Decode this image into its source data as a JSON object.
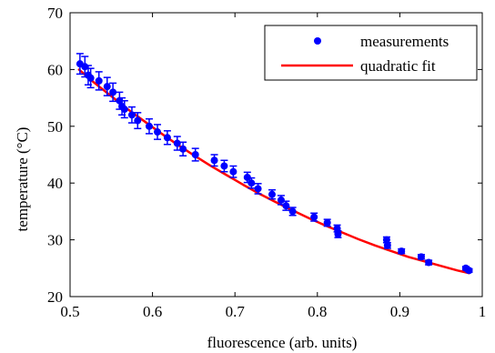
{
  "chart_data": {
    "type": "scatter",
    "xlabel": "fluorescence (arb. units)",
    "ylabel": "temperature (°C)",
    "xlim": [
      0.5,
      1.0
    ],
    "ylim": [
      20,
      70
    ],
    "xticks": [
      {
        "value": 0.5,
        "label": "0.5"
      },
      {
        "value": 0.6,
        "label": "0.6"
      },
      {
        "value": 0.7,
        "label": "0.7"
      },
      {
        "value": 0.8,
        "label": "0.8"
      },
      {
        "value": 0.9,
        "label": "0.9"
      },
      {
        "value": 1.0,
        "label": "1"
      }
    ],
    "yticks": [
      {
        "value": 20,
        "label": "20"
      },
      {
        "value": 30,
        "label": "30"
      },
      {
        "value": 40,
        "label": "40"
      },
      {
        "value": 50,
        "label": "50"
      },
      {
        "value": 60,
        "label": "60"
      },
      {
        "value": 70,
        "label": "70"
      }
    ],
    "grid": false,
    "legend_position": "top-right",
    "series": [
      {
        "name": "measurements",
        "kind": "markers-with-errorbars",
        "color": "#0000ff",
        "points": [
          {
            "x": 0.512,
            "y": 61.0,
            "err": 1.8
          },
          {
            "x": 0.518,
            "y": 60.5,
            "err": 1.8
          },
          {
            "x": 0.522,
            "y": 59.0,
            "err": 1.7
          },
          {
            "x": 0.525,
            "y": 58.5,
            "err": 1.7
          },
          {
            "x": 0.535,
            "y": 58.0,
            "err": 1.6
          },
          {
            "x": 0.545,
            "y": 57.0,
            "err": 1.6
          },
          {
            "x": 0.552,
            "y": 56.0,
            "err": 1.6
          },
          {
            "x": 0.56,
            "y": 54.5,
            "err": 1.5
          },
          {
            "x": 0.563,
            "y": 53.5,
            "err": 1.5
          },
          {
            "x": 0.566,
            "y": 53.0,
            "err": 1.5
          },
          {
            "x": 0.575,
            "y": 52.0,
            "err": 1.4
          },
          {
            "x": 0.582,
            "y": 51.0,
            "err": 1.4
          },
          {
            "x": 0.596,
            "y": 50.0,
            "err": 1.3
          },
          {
            "x": 0.606,
            "y": 49.0,
            "err": 1.3
          },
          {
            "x": 0.618,
            "y": 48.0,
            "err": 1.2
          },
          {
            "x": 0.63,
            "y": 47.0,
            "err": 1.2
          },
          {
            "x": 0.637,
            "y": 46.0,
            "err": 1.2
          },
          {
            "x": 0.652,
            "y": 45.0,
            "err": 1.1
          },
          {
            "x": 0.675,
            "y": 44.0,
            "err": 1.0
          },
          {
            "x": 0.687,
            "y": 43.0,
            "err": 1.0
          },
          {
            "x": 0.698,
            "y": 42.0,
            "err": 1.0
          },
          {
            "x": 0.715,
            "y": 41.0,
            "err": 0.9
          },
          {
            "x": 0.72,
            "y": 40.0,
            "err": 0.9
          },
          {
            "x": 0.728,
            "y": 39.0,
            "err": 0.9
          },
          {
            "x": 0.745,
            "y": 38.0,
            "err": 0.8
          },
          {
            "x": 0.756,
            "y": 37.0,
            "err": 0.8
          },
          {
            "x": 0.762,
            "y": 36.0,
            "err": 0.8
          },
          {
            "x": 0.77,
            "y": 35.0,
            "err": 0.7
          },
          {
            "x": 0.796,
            "y": 34.0,
            "err": 0.7
          },
          {
            "x": 0.812,
            "y": 33.0,
            "err": 0.6
          },
          {
            "x": 0.824,
            "y": 32.0,
            "err": 0.6
          },
          {
            "x": 0.825,
            "y": 31.0,
            "err": 0.6
          },
          {
            "x": 0.884,
            "y": 30.0,
            "err": 0.5
          },
          {
            "x": 0.885,
            "y": 29.0,
            "err": 0.5
          },
          {
            "x": 0.902,
            "y": 28.0,
            "err": 0.4
          },
          {
            "x": 0.926,
            "y": 27.0,
            "err": 0.4
          },
          {
            "x": 0.935,
            "y": 26.0,
            "err": 0.4
          },
          {
            "x": 0.98,
            "y": 25.0,
            "err": 0.3
          },
          {
            "x": 0.984,
            "y": 24.6,
            "err": 0.3
          }
        ]
      },
      {
        "name": "quadratic fit",
        "kind": "line",
        "color": "#ff0000",
        "x": [
          0.51,
          0.53,
          0.55,
          0.57,
          0.59,
          0.61,
          0.63,
          0.65,
          0.67,
          0.69,
          0.71,
          0.73,
          0.75,
          0.77,
          0.79,
          0.81,
          0.83,
          0.85,
          0.87,
          0.89,
          0.91,
          0.93,
          0.95,
          0.97,
          0.985
        ],
        "y": [
          60.1,
          57.6,
          55.3,
          53.0,
          50.9,
          48.8,
          46.8,
          44.9,
          43.1,
          41.4,
          39.7,
          38.1,
          36.6,
          35.2,
          33.8,
          32.5,
          31.3,
          30.1,
          29.0,
          28.0,
          27.0,
          26.2,
          25.4,
          24.6,
          24.1
        ]
      }
    ]
  }
}
